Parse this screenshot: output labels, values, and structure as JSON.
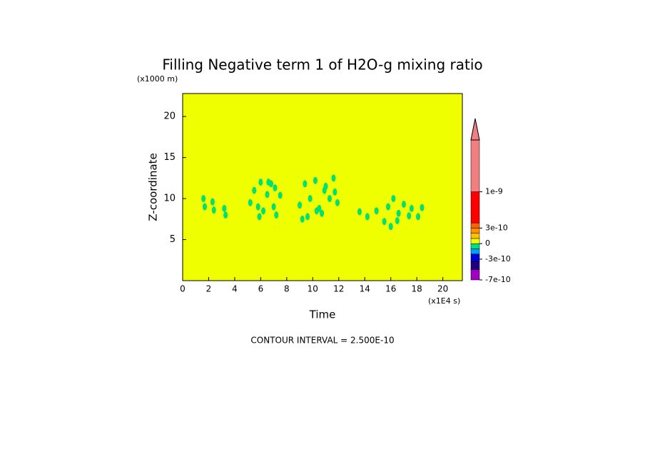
{
  "chart_data": {
    "type": "contour",
    "title": "Filling Negative term 1 of H2O-g mixing ratio",
    "x_label": "Time",
    "y_label": "Z-coordinate",
    "x_unit": "(x1E4 s)",
    "y_unit": "(x1000 m)",
    "note": "CONTOUR INTERVAL = 2.500E-10",
    "xlim": [
      0,
      21.5
    ],
    "xticks": [
      0,
      2,
      4,
      6,
      8,
      10,
      12,
      14,
      16,
      18,
      20
    ],
    "ylim": [
      0,
      22.8
    ],
    "yticks": [
      5,
      10,
      15,
      20
    ],
    "background_color": "#f0ff00",
    "blob_color": "#00e070",
    "blobs": {
      "x": [
        1.6,
        1.7,
        2.3,
        2.4,
        3.2,
        3.3,
        5.2,
        5.5,
        5.8,
        6.0,
        6.2,
        6.5,
        6.8,
        7.0,
        7.2,
        7.5,
        5.9,
        6.6,
        7.1,
        9.0,
        9.4,
        9.8,
        10.2,
        10.5,
        10.9,
        11.3,
        11.6,
        11.9,
        9.6,
        10.3,
        11.0,
        11.7,
        9.2,
        10.7,
        13.6,
        14.2,
        14.9,
        15.5,
        15.8,
        16.2,
        16.6,
        17.0,
        17.4,
        16.0,
        16.5,
        17.6,
        18.1,
        18.4
      ],
      "y": [
        10,
        9,
        9.6,
        8.6,
        8.8,
        8,
        9.5,
        11,
        9,
        12,
        8.5,
        10.5,
        11.8,
        9,
        8,
        10.4,
        7.8,
        12,
        11.3,
        9.2,
        11.8,
        10,
        12.2,
        8.8,
        11,
        10,
        12.5,
        9.5,
        7.8,
        8.5,
        11.5,
        10.8,
        7.5,
        8.2,
        8.4,
        7.8,
        8.5,
        7.2,
        9,
        10,
        8.2,
        9.3,
        7.9,
        6.6,
        7.3,
        8.8,
        7.8,
        8.9
      ]
    },
    "colorbar": {
      "bounds": [
        -7e-10,
        -5e-10,
        -3.5e-10,
        -2e-10,
        -1e-10,
        0,
        1e-10,
        2e-10,
        3e-10,
        4e-10,
        1e-09,
        2e-09
      ],
      "colors": [
        "#a000c0",
        "#200080",
        "#0000d0",
        "#00a0ff",
        "#00e080",
        "#f0ff00",
        "#ffc000",
        "#ff9000",
        "#ff6000",
        "#ff0000",
        "#f08080"
      ],
      "ticks": [
        {
          "value": 1e-09,
          "label": "1e-9"
        },
        {
          "value": 3e-10,
          "label": "3e-10"
        },
        0,
        {
          "value": -3e-10,
          "label": "-3e-10"
        },
        {
          "value": -7e-10,
          "label": "-7e-10"
        }
      ]
    }
  }
}
